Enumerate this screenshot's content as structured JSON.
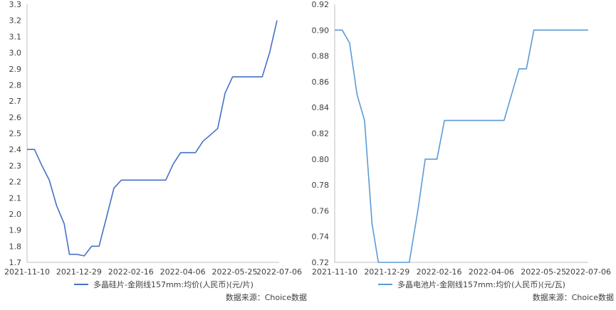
{
  "chart_data": [
    {
      "type": "line",
      "x_ticks": [
        "2021-11-10",
        "2021-12-29",
        "2022-02-16",
        "2022-04-06",
        "2022-05-25",
        "2022-07-06"
      ],
      "y_ticks": [
        "1.7",
        "1.8",
        "1.9",
        "2.0",
        "2.1",
        "2.2",
        "2.3",
        "2.4",
        "2.5",
        "2.6",
        "2.7",
        "2.8",
        "2.9",
        "3.0",
        "3.1",
        "3.2",
        "3.3"
      ],
      "ylim": [
        1.7,
        3.3
      ],
      "xlim": [
        "2021-11-10",
        "2022-07-06"
      ],
      "grid": false,
      "legend_position": "bottom",
      "series": [
        {
          "name": "多晶硅片-金刚线157mm:均价(人民币)(元/片)",
          "color": "#4472c4",
          "points": [
            [
              "2021-11-10",
              2.4
            ],
            [
              "2021-11-17",
              2.4
            ],
            [
              "2021-11-24",
              2.3
            ],
            [
              "2021-12-01",
              2.21
            ],
            [
              "2021-12-08",
              2.05
            ],
            [
              "2021-12-15",
              1.94
            ],
            [
              "2021-12-20",
              1.75
            ],
            [
              "2021-12-27",
              1.75
            ],
            [
              "2022-01-03",
              1.74
            ],
            [
              "2022-01-10",
              1.8
            ],
            [
              "2022-01-17",
              1.8
            ],
            [
              "2022-01-24",
              1.98
            ],
            [
              "2022-01-31",
              2.16
            ],
            [
              "2022-02-07",
              2.21
            ],
            [
              "2022-03-21",
              2.21
            ],
            [
              "2022-03-28",
              2.31
            ],
            [
              "2022-04-04",
              2.38
            ],
            [
              "2022-04-18",
              2.38
            ],
            [
              "2022-04-25",
              2.45
            ],
            [
              "2022-05-02",
              2.49
            ],
            [
              "2022-05-09",
              2.53
            ],
            [
              "2022-05-16",
              2.75
            ],
            [
              "2022-05-23",
              2.85
            ],
            [
              "2022-06-20",
              2.85
            ],
            [
              "2022-06-27",
              3.0
            ],
            [
              "2022-07-04",
              3.2
            ]
          ]
        }
      ],
      "source": "数据来源：Choice数据"
    },
    {
      "type": "line",
      "x_ticks": [
        "2021-11-10",
        "2021-12-29",
        "2022-02-16",
        "2022-04-06",
        "2022-05-25",
        "2022-07-06"
      ],
      "y_ticks": [
        "0.72",
        "0.74",
        "0.76",
        "0.78",
        "0.80",
        "0.82",
        "0.84",
        "0.86",
        "0.88",
        "0.90",
        "0.92"
      ],
      "ylim": [
        0.72,
        0.92
      ],
      "xlim": [
        "2021-11-10",
        "2022-07-06"
      ],
      "grid": false,
      "legend_position": "bottom",
      "series": [
        {
          "name": "多晶电池片-金刚线157mm:均价(人民币)(元/瓦)",
          "color": "#5b9bd5",
          "points": [
            [
              "2021-11-10",
              0.9
            ],
            [
              "2021-11-17",
              0.9
            ],
            [
              "2021-11-24",
              0.89
            ],
            [
              "2021-12-01",
              0.85
            ],
            [
              "2021-12-08",
              0.83
            ],
            [
              "2021-12-15",
              0.75
            ],
            [
              "2021-12-21",
              0.72
            ],
            [
              "2022-01-19",
              0.72
            ],
            [
              "2022-01-27",
              0.76
            ],
            [
              "2022-02-03",
              0.8
            ],
            [
              "2022-02-14",
              0.8
            ],
            [
              "2022-02-21",
              0.83
            ],
            [
              "2022-04-18",
              0.83
            ],
            [
              "2022-04-25",
              0.85
            ],
            [
              "2022-05-02",
              0.87
            ],
            [
              "2022-05-09",
              0.87
            ],
            [
              "2022-05-16",
              0.9
            ],
            [
              "2022-07-06",
              0.9
            ]
          ]
        }
      ],
      "source": "数据来源：Choice数据"
    }
  ]
}
